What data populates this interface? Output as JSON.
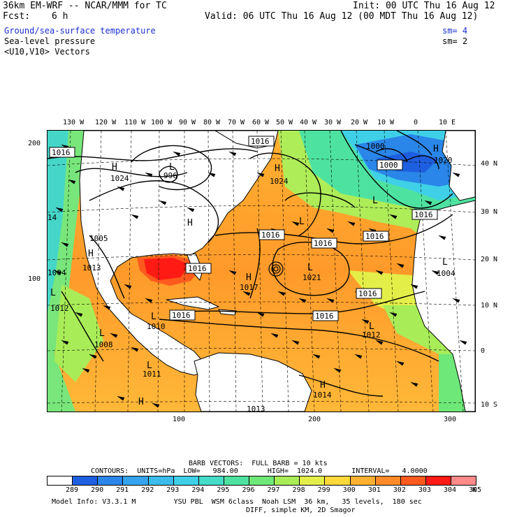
{
  "header": {
    "model": "36km EM-WRF -- NCAR/MMM for TC",
    "fcst_label": "Fcst:",
    "fcst_value": "6 h",
    "init": "Init: 00 UTC Thu 16 Aug 12",
    "valid": "Valid: 06 UTC Thu 16 Aug 12 (00 MDT Thu 16 Aug 12)"
  },
  "fields": [
    {
      "name": "Ground/sea-surface temperature",
      "sm": "sm= 4",
      "color": "#1a2fd0"
    },
    {
      "name": "Sea-level pressure",
      "sm": "sm= 2",
      "color": "#000000"
    },
    {
      "name": "<U10,V10> Vectors",
      "sm": "",
      "color": "#000000"
    }
  ],
  "map": {
    "top_lon_labels": [
      "130 W",
      "120 W",
      "110 W",
      "100 W",
      "90 W",
      "80 W",
      "70 W",
      "60 W",
      "50 W",
      "40 W",
      "30 W",
      "20 W",
      "10 W",
      "0",
      "10 E"
    ],
    "left_grid_labels": [
      "200",
      "100"
    ],
    "bottom_grid_labels": [
      "100",
      "200",
      "300"
    ],
    "right_lat_labels": [
      "40 N",
      "30 N",
      "20 N",
      "10 N",
      "0",
      "10 S"
    ],
    "pressure_labels": [
      {
        "text": "1016",
        "boxed": true
      },
      {
        "text": "1016",
        "boxed": true
      },
      {
        "text": "1016",
        "boxed": true
      },
      {
        "text": "1016",
        "boxed": true
      },
      {
        "text": "1016",
        "boxed": true
      },
      {
        "text": "1016",
        "boxed": true
      },
      {
        "text": "1016",
        "boxed": true
      },
      {
        "text": "1016",
        "boxed": true
      },
      {
        "text": "1016",
        "boxed": true
      },
      {
        "text": "1016",
        "boxed": true
      },
      {
        "text": "1000",
        "boxed": true
      },
      {
        "text": "1024",
        "boxed": false
      },
      {
        "text": "996",
        "boxed": false
      },
      {
        "text": "1000",
        "boxed": false
      },
      {
        "text": "1020",
        "boxed": false
      },
      {
        "text": "1005",
        "boxed": false
      },
      {
        "text": "1013",
        "boxed": false
      },
      {
        "text": "1012",
        "boxed": false
      },
      {
        "text": "1008",
        "boxed": false
      },
      {
        "text": "1011",
        "boxed": false
      },
      {
        "text": "1010",
        "boxed": false
      },
      {
        "text": "1017",
        "boxed": false
      },
      {
        "text": "1021",
        "boxed": false
      },
      {
        "text": "1012",
        "boxed": false
      },
      {
        "text": "1004",
        "boxed": false
      },
      {
        "text": "1014",
        "boxed": false
      },
      {
        "text": "1024",
        "boxed": false
      },
      {
        "text": "1004",
        "boxed": false
      },
      {
        "text": "988",
        "boxed": false
      },
      {
        "text": "1013",
        "boxed": false
      },
      {
        "text": "14",
        "boxed": false
      }
    ],
    "center_markers": [
      "H",
      "H",
      "H",
      "H",
      "H",
      "H",
      "H",
      "H",
      "L",
      "L",
      "L",
      "L",
      "L",
      "L",
      "L",
      "L",
      "L",
      "L",
      "L"
    ]
  },
  "footer": {
    "barb_line": "BARB VECTORS:  FULL BARB = 10 kts",
    "contours_line": "CONTOURS:  UNITS=hPa  LOW=   984.00       HIGH=  1024.0       INTERVAL=   4.0000",
    "colorbar_labels": [
      "289",
      "290",
      "291",
      "292",
      "293",
      "294",
      "295",
      "296",
      "297",
      "298",
      "299",
      "300",
      "301",
      "302",
      "303",
      "304",
      "305"
    ],
    "colorbar_unit": "K",
    "colorbar_colors": [
      "#ffffff",
      "#1e5fe0",
      "#2a86e8",
      "#34a4ee",
      "#3bbcec",
      "#3fd0e8",
      "#45dcc8",
      "#4ee2a0",
      "#6ee878",
      "#a8ec58",
      "#e4ee48",
      "#ffd83a",
      "#ffb030",
      "#ff8a28",
      "#ff5a1e",
      "#ff1a14",
      "#ff8a8a"
    ],
    "info1": "Model Info: V3.3.1 M         YSU PBL  WSM 6class  Noah LSM  36 km,   35 levels,  180 sec",
    "info2": "DIFF, simple KM, 2D Smagor"
  }
}
